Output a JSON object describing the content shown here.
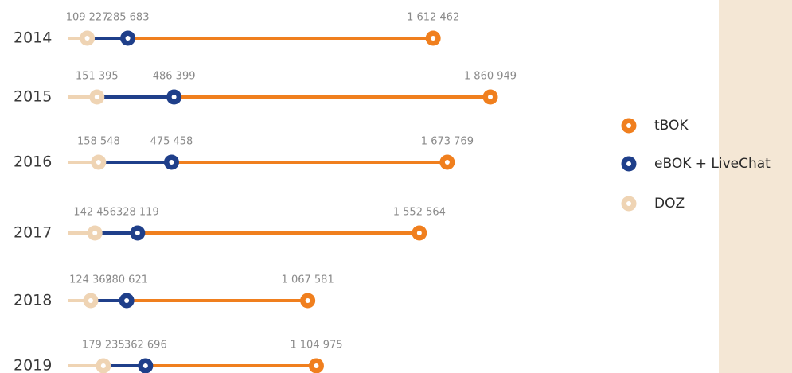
{
  "chart_data": {
    "type": "dot",
    "categories": [
      "2014",
      "2015",
      "2016",
      "2017",
      "2018",
      "2019"
    ],
    "series": [
      {
        "name": "tBOK",
        "color": "#f07f1e",
        "values": [
          1612462,
          1860949,
          1673769,
          1552564,
          1067581,
          1104975
        ],
        "value_labels": [
          "1 612 462",
          "1 860 949",
          "1 673 769",
          "1 552 564",
          "1 067 581",
          "1 104 975"
        ]
      },
      {
        "name": "eBOK + LiveChat",
        "color": "#1f3f8a",
        "values": [
          285683,
          486399,
          475458,
          328119,
          280621,
          362696
        ],
        "value_labels": [
          "285 683",
          "486 399",
          "475 458",
          "328 119",
          "280 621",
          "362 696"
        ]
      },
      {
        "name": "DOZ",
        "color": "#efd4b4",
        "values": [
          109227,
          151395,
          158548,
          142456,
          124369,
          179235
        ],
        "value_labels": [
          "109 227",
          "151 395",
          "158 548",
          "142 456",
          "124 369",
          "179 235"
        ]
      }
    ]
  }
}
